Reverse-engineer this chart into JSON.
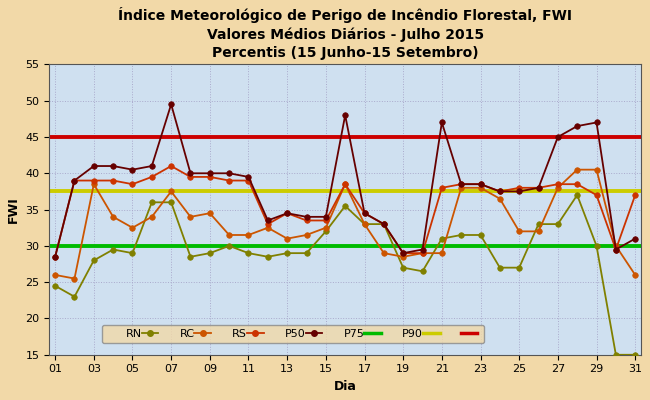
{
  "title": "Índice Meteorológico de Perigo de Incêndio Florestal, FWI\nValores Médios Diários - Julho 2015\nPercentis (15 Junho-15 Setembro)",
  "xlabel": "Dia",
  "ylabel": "FWI",
  "background_color": "#f2d9a8",
  "plot_background": "#cfe0f0",
  "ylim": [
    15,
    55
  ],
  "xlim": [
    1,
    31
  ],
  "xticks": [
    1,
    3,
    5,
    7,
    9,
    11,
    13,
    15,
    17,
    19,
    21,
    23,
    25,
    27,
    29,
    31
  ],
  "yticks": [
    15,
    20,
    25,
    30,
    35,
    40,
    45,
    50,
    55
  ],
  "days": [
    1,
    2,
    3,
    4,
    5,
    6,
    7,
    8,
    9,
    10,
    11,
    12,
    13,
    14,
    15,
    16,
    17,
    18,
    19,
    20,
    21,
    22,
    23,
    24,
    25,
    26,
    27,
    28,
    29,
    30,
    31
  ],
  "RN": [
    24.5,
    23.0,
    28.0,
    29.5,
    29.0,
    36.0,
    36.0,
    28.5,
    29.0,
    30.0,
    29.0,
    28.5,
    29.0,
    29.0,
    32.0,
    35.5,
    33.0,
    33.0,
    27.0,
    26.5,
    31.0,
    31.5,
    31.5,
    27.0,
    27.0,
    33.0,
    33.0,
    37.0,
    30.0,
    15.0,
    15.0
  ],
  "RC": [
    26.0,
    25.5,
    38.5,
    34.0,
    32.5,
    34.0,
    37.5,
    34.0,
    34.5,
    31.5,
    31.5,
    32.5,
    31.0,
    31.5,
    32.5,
    38.5,
    33.0,
    29.0,
    28.5,
    29.0,
    29.0,
    38.0,
    38.0,
    36.5,
    32.0,
    32.0,
    38.0,
    40.5,
    40.5,
    30.0,
    26.0
  ],
  "RS": [
    28.5,
    39.0,
    39.0,
    39.0,
    38.5,
    39.5,
    41.0,
    39.5,
    39.5,
    39.0,
    39.0,
    33.0,
    34.5,
    33.5,
    33.5,
    38.5,
    34.5,
    33.0,
    29.0,
    29.0,
    38.0,
    38.5,
    38.5,
    37.5,
    38.0,
    38.0,
    38.5,
    38.5,
    37.0,
    29.5,
    37.0
  ],
  "P50": [
    28.5,
    39.0,
    41.0,
    41.0,
    40.5,
    41.0,
    49.5,
    40.0,
    40.0,
    40.0,
    39.5,
    33.5,
    34.5,
    34.0,
    34.0,
    48.0,
    34.5,
    33.0,
    29.0,
    29.5,
    47.0,
    38.5,
    38.5,
    37.5,
    37.5,
    38.0,
    45.0,
    46.5,
    47.0,
    29.5,
    31.0
  ],
  "RN_color": "#808000",
  "RC_color": "#cc5500",
  "RS_color": "#cc3300",
  "P50_color": "#660000",
  "P75_value": 30.0,
  "P75_color": "#00bb00",
  "P90_value": 37.5,
  "P90_color": "#cccc00",
  "P100_value": 45.0,
  "P100_color": "#cc0000",
  "grid_color": "#aaaacc",
  "title_fontsize": 10,
  "axis_fontsize": 9,
  "tick_fontsize": 8,
  "legend_fontsize": 8
}
